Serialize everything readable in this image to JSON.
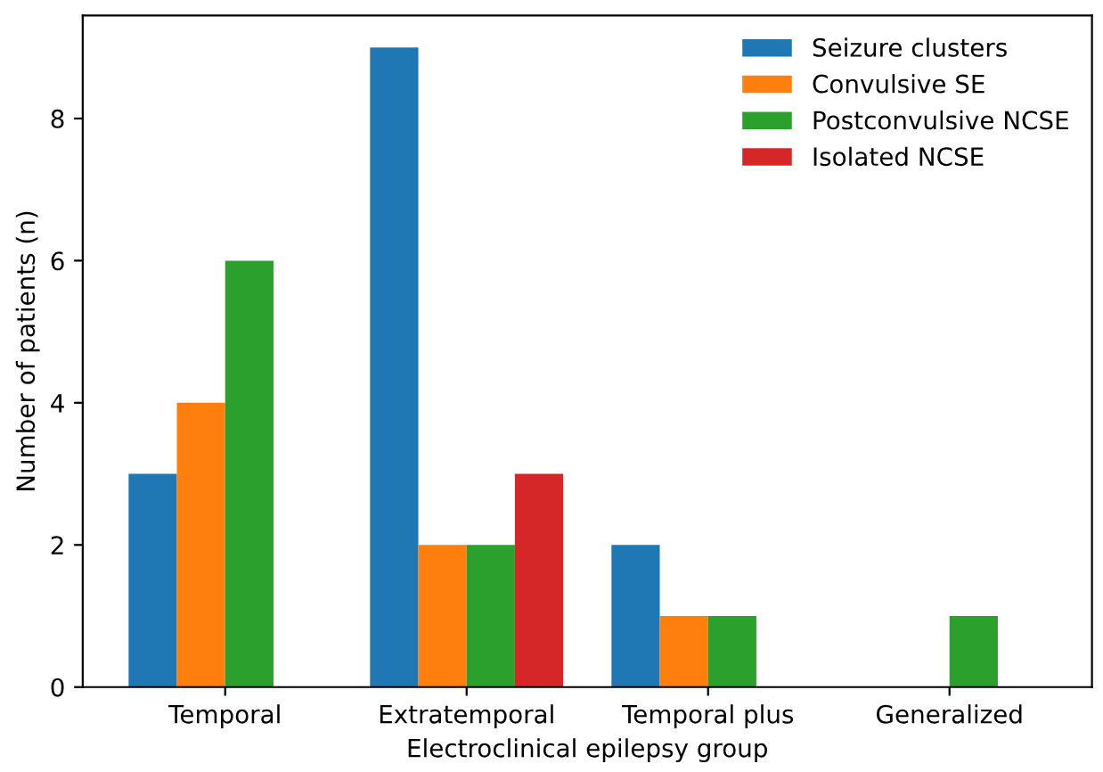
{
  "chart_data": {
    "type": "bar",
    "xlabel": "Electroclinical epilepsy group",
    "ylabel": "Number of patients (n)",
    "categories": [
      "Temporal",
      "Extratemporal",
      "Temporal plus",
      "Generalized"
    ],
    "series": [
      {
        "name": "Seizure clusters",
        "color": "#1f77b4",
        "values": [
          3,
          9,
          2,
          0
        ]
      },
      {
        "name": "Convulsive SE",
        "color": "#ff7f0e",
        "values": [
          4,
          2,
          1,
          0
        ]
      },
      {
        "name": "Postconvulsive NCSE",
        "color": "#2ca02c",
        "values": [
          6,
          2,
          1,
          1
        ]
      },
      {
        "name": "Isolated NCSE",
        "color": "#d62728",
        "values": [
          0,
          3,
          0,
          0
        ]
      }
    ],
    "ylim": [
      0,
      9.45
    ],
    "yticks": [
      0,
      2,
      4,
      6,
      8
    ],
    "grid": false,
    "legend": "top right"
  }
}
